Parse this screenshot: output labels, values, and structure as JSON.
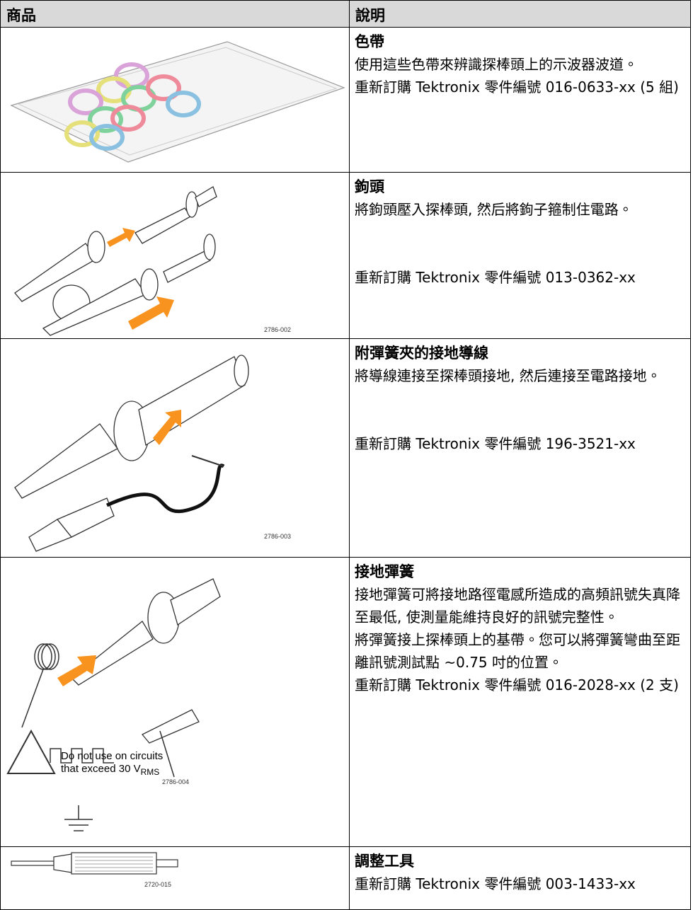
{
  "table": {
    "header": [
      "商品",
      "說明"
    ],
    "rows": [
      {
        "title": "色帶",
        "text": [
          "使用這些色帶來辨識探棒頭上的示波器波道。",
          "重新訂購 Tektronix 零件編號 016-0633-xx (5 組)"
        ]
      },
      {
        "title": "鉤頭",
        "text": [
          "將鉤頭壓入探棒頭, 然后將鉤子箍制住電路。",
          "重新訂購 Tektronix 零件編號 013-0362-xx"
        ],
        "figure_code": "2786-002"
      },
      {
        "title": "附彈簧夾的接地導線",
        "text": [
          "將導線連接至探棒頭接地, 然后連接至電路接地。",
          "重新訂購 Tektronix 零件編號 196-3521-xx"
        ],
        "figure_code": "2786-003"
      },
      {
        "title": "接地彈簧",
        "text": [
          "接地彈簧可將接地路徑電感所造成的高頻訊號失真降至最低, 使測量能維持良好的訊號完整性。",
          "將彈簧接上探棒頭上的基帶。您可以將彈簧彎曲至距離訊號測試點 ~0.75 吋的位置。",
          "重新訂購 Tektronix 零件編號 016-2028-xx (2 支)"
        ],
        "figure_code": "2786-004",
        "warning": [
          "Do not use on circuits",
          "that exceed 30 V",
          "RMS"
        ]
      },
      {
        "title": "調整工具",
        "text": [
          "重新訂購 Tektronix 零件編號 003-1433-xx"
        ],
        "figure_code": "2720-015"
      }
    ]
  }
}
